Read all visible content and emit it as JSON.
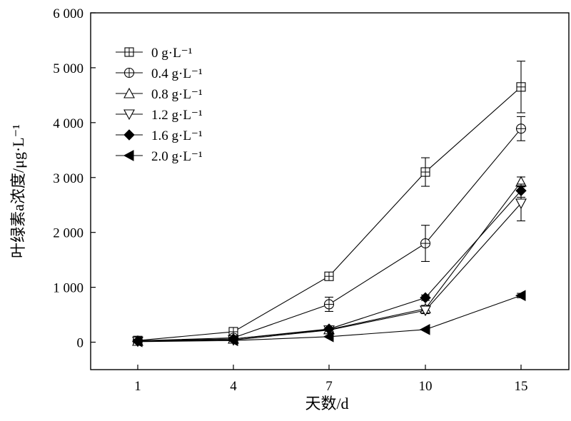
{
  "chart_data": {
    "type": "line",
    "xlabel": "天数/d",
    "ylabel": "叶绿素a浓度/μg·L⁻¹",
    "x": [
      1,
      4,
      7,
      10,
      15
    ],
    "xticks": [
      "1",
      "4",
      "7",
      "10",
      "15"
    ],
    "yticks": [
      {
        "value": 0,
        "label": "0"
      },
      {
        "value": 1000,
        "label": "1 000"
      },
      {
        "value": 2000,
        "label": "2 000"
      },
      {
        "value": 3000,
        "label": "3 000"
      },
      {
        "value": 4000,
        "label": "4 000"
      },
      {
        "value": 5000,
        "label": "5 000"
      },
      {
        "value": 6000,
        "label": "6 000"
      }
    ],
    "ylim": [
      -500,
      6000
    ],
    "grid": false,
    "legend_position": "top-left",
    "series": [
      {
        "name": "0 g·L⁻¹",
        "marker": "square-plus",
        "values": [
          30,
          190,
          1200,
          3100,
          4650
        ],
        "errors": [
          20,
          30,
          70,
          260,
          470
        ]
      },
      {
        "name": "0.4 g·L⁻¹",
        "marker": "circle-plus",
        "values": [
          25,
          80,
          690,
          1800,
          3890
        ],
        "errors": [
          15,
          20,
          130,
          330,
          220
        ]
      },
      {
        "name": "0.8 g·L⁻¹",
        "marker": "triangle-up",
        "values": [
          20,
          60,
          230,
          610,
          2920
        ],
        "errors": [
          10,
          15,
          40,
          60,
          90
        ]
      },
      {
        "name": "1.2 g·L⁻¹",
        "marker": "triangle-down",
        "values": [
          15,
          40,
          220,
          580,
          2530
        ],
        "errors": [
          10,
          15,
          30,
          60,
          320
        ]
      },
      {
        "name": "1.6 g·L⁻¹",
        "marker": "diamond",
        "values": [
          20,
          60,
          240,
          810,
          2760
        ],
        "errors": [
          10,
          15,
          30,
          50,
          120
        ]
      },
      {
        "name": "2.0 g·L⁻¹",
        "marker": "triangle-left",
        "values": [
          10,
          30,
          100,
          230,
          850
        ],
        "errors": [
          5,
          10,
          20,
          30,
          40
        ]
      }
    ]
  }
}
